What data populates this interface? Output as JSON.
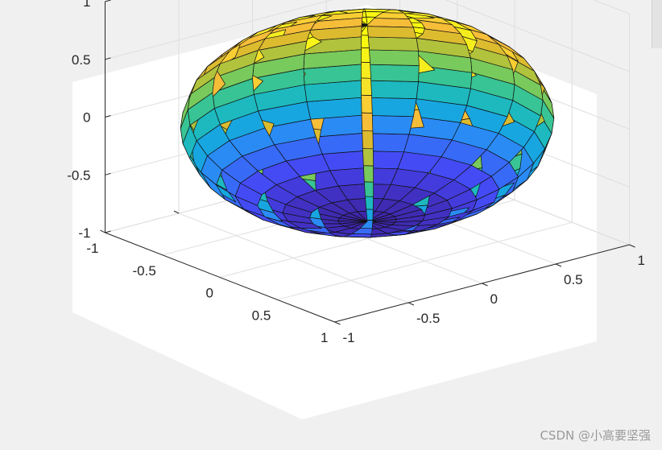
{
  "chart_data": {
    "type": "surface",
    "surface": "ellipsoid",
    "x_range": [
      -1,
      1
    ],
    "y_range": [
      -1,
      1
    ],
    "z_range": [
      -1,
      1
    ],
    "semi_axes": [
      1,
      1,
      0.85
    ],
    "grid": true,
    "colormap": "parula",
    "colormap_colors": [
      "#3e26a8",
      "#4646f5",
      "#2e84fa",
      "#12b0d9",
      "#2ac3a0",
      "#86cb50",
      "#d4bb2b",
      "#fcbd3b",
      "#f5e627",
      "#f9fb0e"
    ],
    "x_ticks": [
      "-1",
      "-0.5",
      "0",
      "0.5",
      "1"
    ],
    "y_ticks": [
      "-1",
      "-0.5",
      "0",
      "0.5",
      "1"
    ],
    "z_ticks": [
      "-1",
      "-0.5",
      "0",
      "0.5",
      "1"
    ]
  },
  "watermark": "CSDN @小高要坚强"
}
